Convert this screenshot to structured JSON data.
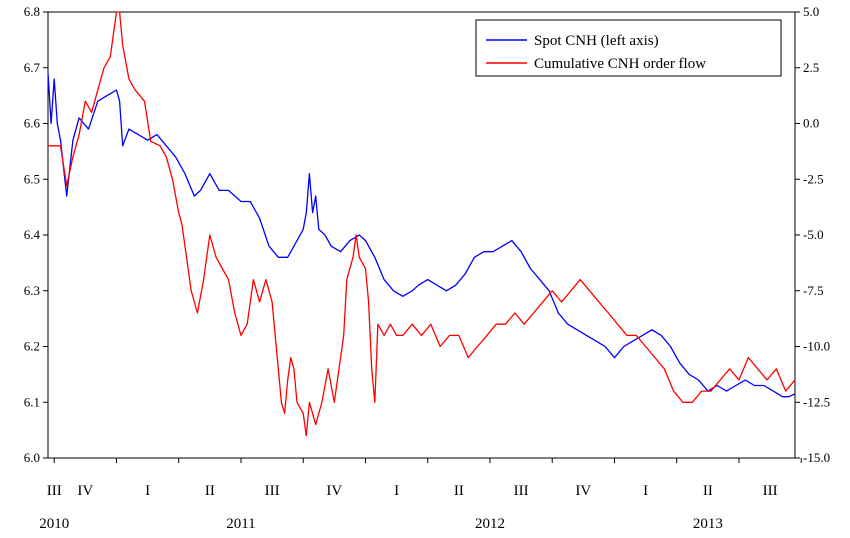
{
  "chart_data": {
    "type": "line",
    "left_axis": {
      "ylim": [
        6.0,
        6.8
      ],
      "ticks": [
        "6.0",
        "6.1",
        "6.2",
        "6.3",
        "6.4",
        "6.5",
        "6.6",
        "6.7",
        "6.8"
      ]
    },
    "right_axis": {
      "ylim": [
        -15.0,
        5.0
      ],
      "ticks": [
        "-15.0",
        "-12.5",
        "-10.0",
        "-7.5",
        "-5.0",
        "-2.5",
        "0.0",
        "2.5",
        "5.0"
      ]
    },
    "x_quarters": [
      {
        "label": "III",
        "t": 0.0
      },
      {
        "label": "IV",
        "t": 0.5
      },
      {
        "label": "I",
        "t": 1.5
      },
      {
        "label": "II",
        "t": 2.5
      },
      {
        "label": "III",
        "t": 3.5
      },
      {
        "label": "IV",
        "t": 4.5
      },
      {
        "label": "I",
        "t": 5.5
      },
      {
        "label": "II",
        "t": 6.5
      },
      {
        "label": "III",
        "t": 7.5
      },
      {
        "label": "IV",
        "t": 8.5
      },
      {
        "label": "I",
        "t": 9.5
      },
      {
        "label": "II",
        "t": 10.5
      },
      {
        "label": "III",
        "t": 11.5
      }
    ],
    "x_years": [
      {
        "label": "2010",
        "t": 0.0
      },
      {
        "label": "2011",
        "t": 3.0
      },
      {
        "label": "2012",
        "t": 7.0
      },
      {
        "label": "2013",
        "t": 10.5
      }
    ],
    "x_range": [
      -0.1,
      11.9
    ],
    "legend": {
      "position": "top-right"
    },
    "series": [
      {
        "name": "Spot CNH (left axis)",
        "color": "#0000ff",
        "axis": "left",
        "points": [
          [
            -0.1,
            6.69
          ],
          [
            -0.05,
            6.6
          ],
          [
            0.0,
            6.68
          ],
          [
            0.05,
            6.6
          ],
          [
            0.1,
            6.57
          ],
          [
            0.2,
            6.47
          ],
          [
            0.3,
            6.57
          ],
          [
            0.4,
            6.61
          ],
          [
            0.55,
            6.59
          ],
          [
            0.7,
            6.64
          ],
          [
            0.85,
            6.65
          ],
          [
            1.0,
            6.66
          ],
          [
            1.05,
            6.64
          ],
          [
            1.1,
            6.56
          ],
          [
            1.2,
            6.59
          ],
          [
            1.35,
            6.58
          ],
          [
            1.5,
            6.57
          ],
          [
            1.65,
            6.58
          ],
          [
            1.8,
            6.56
          ],
          [
            1.95,
            6.54
          ],
          [
            2.1,
            6.51
          ],
          [
            2.25,
            6.47
          ],
          [
            2.35,
            6.48
          ],
          [
            2.5,
            6.51
          ],
          [
            2.65,
            6.48
          ],
          [
            2.8,
            6.48
          ],
          [
            3.0,
            6.46
          ],
          [
            3.15,
            6.46
          ],
          [
            3.3,
            6.43
          ],
          [
            3.45,
            6.38
          ],
          [
            3.6,
            6.36
          ],
          [
            3.75,
            6.36
          ],
          [
            3.9,
            6.39
          ],
          [
            4.0,
            6.41
          ],
          [
            4.05,
            6.44
          ],
          [
            4.1,
            6.51
          ],
          [
            4.15,
            6.44
          ],
          [
            4.2,
            6.47
          ],
          [
            4.25,
            6.41
          ],
          [
            4.35,
            6.4
          ],
          [
            4.45,
            6.38
          ],
          [
            4.6,
            6.37
          ],
          [
            4.75,
            6.39
          ],
          [
            4.9,
            6.4
          ],
          [
            5.0,
            6.39
          ],
          [
            5.15,
            6.36
          ],
          [
            5.3,
            6.32
          ],
          [
            5.45,
            6.3
          ],
          [
            5.6,
            6.29
          ],
          [
            5.75,
            6.3
          ],
          [
            5.85,
            6.31
          ],
          [
            6.0,
            6.32
          ],
          [
            6.15,
            6.31
          ],
          [
            6.3,
            6.3
          ],
          [
            6.45,
            6.31
          ],
          [
            6.6,
            6.33
          ],
          [
            6.75,
            6.36
          ],
          [
            6.9,
            6.37
          ],
          [
            7.05,
            6.37
          ],
          [
            7.2,
            6.38
          ],
          [
            7.35,
            6.39
          ],
          [
            7.5,
            6.37
          ],
          [
            7.65,
            6.34
          ],
          [
            7.8,
            6.32
          ],
          [
            7.95,
            6.3
          ],
          [
            8.1,
            6.26
          ],
          [
            8.25,
            6.24
          ],
          [
            8.4,
            6.23
          ],
          [
            8.55,
            6.22
          ],
          [
            8.7,
            6.21
          ],
          [
            8.85,
            6.2
          ],
          [
            9.0,
            6.18
          ],
          [
            9.15,
            6.2
          ],
          [
            9.3,
            6.21
          ],
          [
            9.45,
            6.22
          ],
          [
            9.6,
            6.23
          ],
          [
            9.75,
            6.22
          ],
          [
            9.9,
            6.2
          ],
          [
            10.05,
            6.17
          ],
          [
            10.2,
            6.15
          ],
          [
            10.35,
            6.14
          ],
          [
            10.5,
            6.12
          ],
          [
            10.65,
            6.13
          ],
          [
            10.8,
            6.12
          ],
          [
            10.95,
            6.13
          ],
          [
            11.1,
            6.14
          ],
          [
            11.25,
            6.13
          ],
          [
            11.4,
            6.13
          ],
          [
            11.55,
            6.12
          ],
          [
            11.7,
            6.11
          ],
          [
            11.8,
            6.11
          ],
          [
            11.9,
            6.115
          ]
        ]
      },
      {
        "name": "Cumulative CNH order flow",
        "color": "#ff0000",
        "axis": "right",
        "points": [
          [
            -0.1,
            -1.0
          ],
          [
            0.1,
            -1.0
          ],
          [
            0.2,
            -2.8
          ],
          [
            0.3,
            -1.5
          ],
          [
            0.4,
            -0.5
          ],
          [
            0.5,
            1.0
          ],
          [
            0.6,
            0.5
          ],
          [
            0.7,
            1.5
          ],
          [
            0.8,
            2.5
          ],
          [
            0.9,
            3.0
          ],
          [
            1.0,
            5.0
          ],
          [
            1.05,
            5.0
          ],
          [
            1.1,
            3.5
          ],
          [
            1.2,
            2.0
          ],
          [
            1.3,
            1.5
          ],
          [
            1.45,
            1.0
          ],
          [
            1.55,
            -0.8
          ],
          [
            1.7,
            -1.0
          ],
          [
            1.8,
            -1.5
          ],
          [
            1.9,
            -2.5
          ],
          [
            2.0,
            -4.0
          ],
          [
            2.05,
            -4.5
          ],
          [
            2.1,
            -5.5
          ],
          [
            2.2,
            -7.5
          ],
          [
            2.3,
            -8.5
          ],
          [
            2.4,
            -7.0
          ],
          [
            2.5,
            -5.0
          ],
          [
            2.6,
            -6.0
          ],
          [
            2.7,
            -6.5
          ],
          [
            2.8,
            -7.0
          ],
          [
            2.9,
            -8.5
          ],
          [
            3.0,
            -9.5
          ],
          [
            3.1,
            -9.0
          ],
          [
            3.2,
            -7.0
          ],
          [
            3.3,
            -8.0
          ],
          [
            3.4,
            -7.0
          ],
          [
            3.5,
            -8.0
          ],
          [
            3.55,
            -9.5
          ],
          [
            3.6,
            -11.0
          ],
          [
            3.65,
            -12.5
          ],
          [
            3.7,
            -13.0
          ],
          [
            3.75,
            -11.5
          ],
          [
            3.8,
            -10.5
          ],
          [
            3.85,
            -11.0
          ],
          [
            3.9,
            -12.5
          ],
          [
            4.0,
            -13.0
          ],
          [
            4.05,
            -14.0
          ],
          [
            4.1,
            -12.5
          ],
          [
            4.2,
            -13.5
          ],
          [
            4.3,
            -12.5
          ],
          [
            4.4,
            -11.0
          ],
          [
            4.5,
            -12.5
          ],
          [
            4.6,
            -10.5
          ],
          [
            4.65,
            -9.5
          ],
          [
            4.7,
            -7.0
          ],
          [
            4.8,
            -6.0
          ],
          [
            4.85,
            -5.0
          ],
          [
            4.9,
            -6.0
          ],
          [
            5.0,
            -6.5
          ],
          [
            5.05,
            -8.0
          ],
          [
            5.1,
            -11.0
          ],
          [
            5.15,
            -12.5
          ],
          [
            5.2,
            -9.0
          ],
          [
            5.3,
            -9.5
          ],
          [
            5.4,
            -9.0
          ],
          [
            5.5,
            -9.5
          ],
          [
            5.6,
            -9.5
          ],
          [
            5.75,
            -9.0
          ],
          [
            5.9,
            -9.5
          ],
          [
            6.05,
            -9.0
          ],
          [
            6.2,
            -10.0
          ],
          [
            6.35,
            -9.5
          ],
          [
            6.5,
            -9.5
          ],
          [
            6.65,
            -10.5
          ],
          [
            6.8,
            -10.0
          ],
          [
            6.95,
            -9.5
          ],
          [
            7.1,
            -9.0
          ],
          [
            7.25,
            -9.0
          ],
          [
            7.4,
            -8.5
          ],
          [
            7.55,
            -9.0
          ],
          [
            7.7,
            -8.5
          ],
          [
            7.85,
            -8.0
          ],
          [
            8.0,
            -7.5
          ],
          [
            8.15,
            -8.0
          ],
          [
            8.3,
            -7.5
          ],
          [
            8.45,
            -7.0
          ],
          [
            8.6,
            -7.5
          ],
          [
            8.75,
            -8.0
          ],
          [
            8.9,
            -8.5
          ],
          [
            9.05,
            -9.0
          ],
          [
            9.2,
            -9.5
          ],
          [
            9.35,
            -9.5
          ],
          [
            9.5,
            -10.0
          ],
          [
            9.65,
            -10.5
          ],
          [
            9.8,
            -11.0
          ],
          [
            9.95,
            -12.0
          ],
          [
            10.1,
            -12.5
          ],
          [
            10.25,
            -12.5
          ],
          [
            10.4,
            -12.0
          ],
          [
            10.55,
            -12.0
          ],
          [
            10.7,
            -11.5
          ],
          [
            10.85,
            -11.0
          ],
          [
            11.0,
            -11.5
          ],
          [
            11.15,
            -10.5
          ],
          [
            11.3,
            -11.0
          ],
          [
            11.45,
            -11.5
          ],
          [
            11.6,
            -11.0
          ],
          [
            11.75,
            -12.0
          ],
          [
            11.9,
            -11.5
          ]
        ]
      }
    ]
  }
}
